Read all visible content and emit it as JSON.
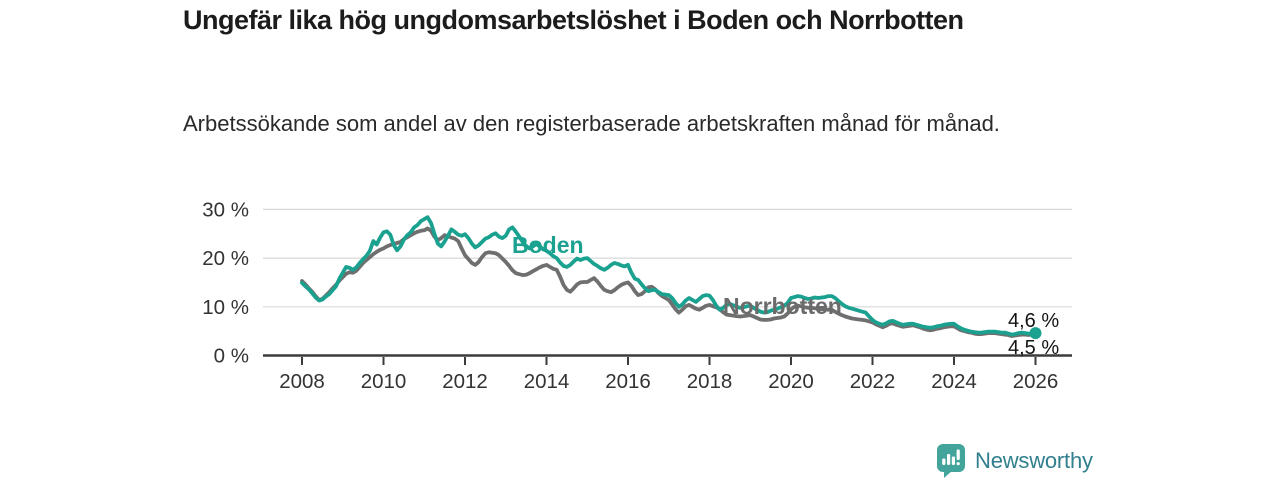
{
  "title": "Ungefär lika hög ungdomsarbetslöshet i Boden och Norrbotten",
  "subtitle": "Arbetssökande som andel av den registerbaserade arbetskraften månad för månad.",
  "footer": {
    "brand": "Newsworthy",
    "logo_icon": "bar-chart-speech-bubble-icon"
  },
  "colors": {
    "boden_teal": "#1aa18f",
    "norrbotten_gray": "#6f6f6f",
    "grid": "#d8d8d8",
    "axis": "#3b3b3b",
    "tick_text": "#333333",
    "title_text": "#1c1c1c",
    "brand_square_teal": "#43a49b",
    "brand_text_teal": "#327f8d"
  },
  "chart_data": {
    "type": "line",
    "title": "Ungefär lika hög ungdomsarbetslöshet i Boden och Norrbotten",
    "xlabel": "",
    "ylabel": "Arbetssökande som andel av den registerbaserade arbetskraften",
    "x_unit": "month",
    "x_start_year": 2008,
    "x_end_year": 2026,
    "xlim": [
      2007.05,
      2026.9
    ],
    "ylim": [
      0,
      32
    ],
    "grid": "horizontal",
    "legend_position": "inline-labels",
    "xticks": [
      2008,
      2010,
      2012,
      2014,
      2016,
      2018,
      2020,
      2022,
      2024,
      2026
    ],
    "yticks": [
      {
        "value": 0,
        "label": "0 %"
      },
      {
        "value": 10,
        "label": "10 %"
      },
      {
        "value": 20,
        "label": "20 %"
      },
      {
        "value": 30,
        "label": "30 %"
      }
    ],
    "series": [
      {
        "name": "Boden",
        "color": "#1aa18f",
        "end_label": "4,6 %",
        "end_value": 4.6,
        "values": [
          14.9,
          14.2,
          13.6,
          12.8,
          11.9,
          11.3,
          11.5,
          12.1,
          12.6,
          13.4,
          14.2,
          15.8,
          17.0,
          18.2,
          18.0,
          17.6,
          18.1,
          19.0,
          19.8,
          20.5,
          21.5,
          23.5,
          22.8,
          24.2,
          25.3,
          25.5,
          24.8,
          22.7,
          21.6,
          22.4,
          23.8,
          24.7,
          25.3,
          26.3,
          26.8,
          27.6,
          28.0,
          28.4,
          27.2,
          25.0,
          23.0,
          22.4,
          23.4,
          24.6,
          25.9,
          25.4,
          24.8,
          24.6,
          24.9,
          24.1,
          23.0,
          22.2,
          22.6,
          23.3,
          24.0,
          24.3,
          24.8,
          25.1,
          24.4,
          24.1,
          24.6,
          25.9,
          26.3,
          25.4,
          24.4,
          23.3,
          22.5,
          22.0,
          22.4,
          22.9,
          22.4,
          21.8,
          21.5,
          21.0,
          20.4,
          20.0,
          19.1,
          18.4,
          18.2,
          18.6,
          19.3,
          19.9,
          19.6,
          19.9,
          20.0,
          19.4,
          18.8,
          18.4,
          17.9,
          17.6,
          18.0,
          18.6,
          19.0,
          18.8,
          18.5,
          18.3,
          18.6,
          17.0,
          15.8,
          15.5,
          14.6,
          13.8,
          13.2,
          13.4,
          13.5,
          13.0,
          12.6,
          12.5,
          12.4,
          11.8,
          10.8,
          10.0,
          10.5,
          11.3,
          11.8,
          11.4,
          11.0,
          11.6,
          12.2,
          12.4,
          12.3,
          11.4,
          10.2,
          9.4,
          9.8,
          10.4,
          10.6,
          10.3,
          10.0,
          9.8,
          9.9,
          10.1,
          10.2,
          9.8,
          9.4,
          9.0,
          8.8,
          8.9,
          9.2,
          9.4,
          9.6,
          9.9,
          10.2,
          10.8,
          11.8,
          12.0,
          12.2,
          12.1,
          11.8,
          11.6,
          11.7,
          11.9,
          11.8,
          11.9,
          12.0,
          12.2,
          12.2,
          11.8,
          11.2,
          10.6,
          10.1,
          9.8,
          9.6,
          9.4,
          9.2,
          9.0,
          8.8,
          8.0,
          7.3,
          6.8,
          6.5,
          6.3,
          6.6,
          7.0,
          7.1,
          6.8,
          6.5,
          6.3,
          6.4,
          6.5,
          6.5,
          6.3,
          6.1,
          5.9,
          5.8,
          5.7,
          5.8,
          6.0,
          6.1,
          6.3,
          6.4,
          6.5,
          6.5,
          6.0,
          5.6,
          5.3,
          5.1,
          4.9,
          4.8,
          4.7,
          4.7,
          4.8,
          4.9,
          4.9,
          4.9,
          4.8,
          4.7,
          4.7,
          4.5,
          4.3,
          4.4,
          4.6,
          4.7,
          4.6,
          4.5,
          4.5,
          4.6
        ]
      },
      {
        "name": "Norrbotten",
        "color": "#6f6f6f",
        "end_label": "4,5 %",
        "end_value": 4.5,
        "values": [
          15.3,
          14.6,
          13.8,
          13.1,
          12.2,
          11.4,
          11.6,
          12.3,
          13.0,
          13.8,
          14.5,
          15.4,
          16.1,
          16.8,
          17.1,
          17.0,
          17.4,
          18.2,
          19.0,
          19.6,
          20.2,
          20.8,
          21.3,
          21.7,
          22.0,
          22.4,
          22.7,
          22.9,
          23.1,
          23.3,
          23.9,
          24.3,
          24.7,
          25.1,
          25.4,
          25.6,
          25.7,
          26.1,
          25.6,
          24.4,
          23.7,
          24.1,
          24.7,
          24.5,
          24.2,
          24.0,
          23.5,
          22.0,
          20.6,
          19.8,
          19.0,
          18.6,
          19.2,
          20.2,
          21.0,
          21.2,
          21.1,
          21.0,
          20.6,
          19.9,
          19.2,
          18.4,
          17.5,
          16.9,
          16.7,
          16.5,
          16.6,
          16.9,
          17.3,
          17.7,
          18.1,
          18.4,
          18.6,
          18.2,
          17.8,
          17.6,
          16.2,
          14.5,
          13.5,
          13.1,
          13.8,
          14.6,
          15.0,
          15.1,
          15.1,
          15.5,
          15.9,
          15.2,
          14.3,
          13.5,
          13.2,
          13.0,
          13.4,
          14.0,
          14.5,
          14.8,
          15.0,
          14.3,
          13.2,
          12.4,
          12.6,
          13.2,
          14.0,
          14.1,
          13.6,
          12.8,
          12.2,
          11.8,
          11.4,
          10.5,
          9.5,
          8.8,
          9.4,
          10.1,
          10.4,
          10.0,
          9.6,
          9.4,
          9.8,
          10.2,
          10.4,
          10.1,
          9.9,
          9.5,
          8.9,
          8.4,
          8.3,
          8.2,
          8.1,
          8.0,
          8.1,
          8.2,
          8.3,
          8.0,
          7.7,
          7.4,
          7.3,
          7.3,
          7.4,
          7.6,
          7.7,
          7.8,
          8.0,
          8.6,
          9.5,
          10.0,
          10.2,
          10.1,
          9.9,
          9.8,
          9.8,
          9.7,
          9.6,
          9.5,
          9.5,
          9.4,
          9.4,
          9.0,
          8.6,
          8.3,
          8.0,
          7.8,
          7.6,
          7.5,
          7.4,
          7.3,
          7.2,
          7.0,
          6.8,
          6.4,
          6.1,
          5.8,
          6.1,
          6.5,
          6.6,
          6.3,
          6.1,
          5.9,
          6.0,
          6.1,
          6.2,
          6.0,
          5.8,
          5.5,
          5.3,
          5.2,
          5.3,
          5.5,
          5.6,
          5.8,
          5.9,
          6.0,
          6.0,
          5.6,
          5.2,
          5.0,
          4.8,
          4.7,
          4.5,
          4.4,
          4.4,
          4.5,
          4.6,
          4.6,
          4.6,
          4.5,
          4.4,
          4.3,
          4.2,
          4.0,
          4.1,
          4.2,
          4.3,
          4.3,
          4.2,
          4.3,
          4.5
        ]
      }
    ]
  }
}
